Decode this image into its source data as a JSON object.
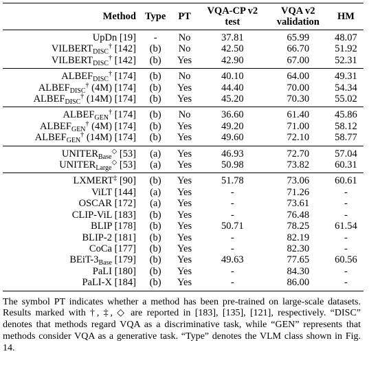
{
  "table": {
    "header": [
      [
        "Method"
      ],
      [
        "Type"
      ],
      [
        "PT"
      ],
      [
        "VQA-CP v2",
        "test"
      ],
      [
        "VQA v2",
        "validation"
      ],
      [
        "HM"
      ]
    ],
    "groups": [
      {
        "rows": [
          {
            "method": {
              "name": "UpDn",
              "ref": "[19]"
            },
            "cells": [
              "-",
              "No",
              "37.81",
              "65.99",
              "48.07"
            ]
          },
          {
            "method": {
              "name": "VILBERT",
              "sub": "DISC",
              "sup": "†",
              "ref": "[142]"
            },
            "cells": [
              "(b)",
              "No",
              "42.50",
              "66.70",
              "51.92"
            ]
          },
          {
            "method": {
              "name": "VILBERT",
              "sub": "DISC",
              "sup": "†",
              "ref": "[142]"
            },
            "cells": [
              "(b)",
              "Yes",
              "42.90",
              "67.00",
              "52.31"
            ]
          }
        ]
      },
      {
        "rows": [
          {
            "method": {
              "name": "ALBEF",
              "sub": "DISC",
              "sup": "†",
              "ref": "[174]"
            },
            "cells": [
              "(b)",
              "No",
              "40.10",
              "64.00",
              "49.31"
            ]
          },
          {
            "method": {
              "name": "ALBEF",
              "sub": "DISC",
              "sup": "†",
              "ref": "(4M) [174]"
            },
            "cells": [
              "(b)",
              "Yes",
              "44.40",
              "70.00",
              "54.34"
            ]
          },
          {
            "method": {
              "name": "ALBEF",
              "sub": "DISC",
              "sup": "†",
              "ref": "(14M) [174]"
            },
            "cells": [
              "(b)",
              "Yes",
              "45.20",
              "70.30",
              "55.02"
            ]
          }
        ]
      },
      {
        "rows": [
          {
            "method": {
              "name": "ALBEF",
              "sub": "GEN",
              "sup": "†",
              "ref": "[174]"
            },
            "cells": [
              "(b)",
              "No",
              "36.60",
              "61.40",
              "45.86"
            ]
          },
          {
            "method": {
              "name": "ALBEF",
              "sub": "GEN",
              "sup": "†",
              "ref": "(4M) [174]"
            },
            "cells": [
              "(b)",
              "Yes",
              "49.20",
              "71.00",
              "58.12"
            ]
          },
          {
            "method": {
              "name": "ALBEF",
              "sub": "GEN",
              "sup": "†",
              "ref": "(14M) [174]"
            },
            "cells": [
              "(b)",
              "Yes",
              "49.60",
              "72.10",
              "58.77"
            ]
          }
        ]
      },
      {
        "rows": [
          {
            "method": {
              "name": "UNITER",
              "sub": "Base",
              "sup": "◇",
              "ref": "[53]"
            },
            "cells": [
              "(a)",
              "Yes",
              "46.93",
              "72.70",
              "57.04"
            ]
          },
          {
            "method": {
              "name": "UNITER",
              "sub": "Large",
              "sup": "◇",
              "ref": "[53]"
            },
            "cells": [
              "(a)",
              "Yes",
              "50.98",
              "73.82",
              "60.31"
            ]
          }
        ]
      },
      {
        "rows": [
          {
            "method": {
              "name": "LXMERT",
              "sup": "‡",
              "ref": "[90]"
            },
            "cells": [
              "(b)",
              "Yes",
              "51.78",
              "73.06",
              "60.61"
            ]
          },
          {
            "method": {
              "name": "ViLT",
              "ref": "[144]"
            },
            "cells": [
              "(a)",
              "Yes",
              "-",
              "71.26",
              "-"
            ]
          },
          {
            "method": {
              "name": "OSCAR",
              "ref": "[172]"
            },
            "cells": [
              "(a)",
              "Yes",
              "-",
              "73.61",
              "-"
            ]
          },
          {
            "method": {
              "name": "CLIP-ViL",
              "ref": "[183]"
            },
            "cells": [
              "(b)",
              "Yes",
              "-",
              "76.48",
              "-"
            ]
          },
          {
            "method": {
              "name": "BLIP",
              "ref": "[178]"
            },
            "cells": [
              "(b)",
              "Yes",
              "50.71",
              "78.25",
              "61.54"
            ]
          },
          {
            "method": {
              "name": "BLIP-2",
              "ref": "[181]"
            },
            "cells": [
              "(b)",
              "Yes",
              "-",
              "82.19",
              "-"
            ]
          },
          {
            "method": {
              "name": "CoCa",
              "ref": "[177]"
            },
            "cells": [
              "(b)",
              "Yes",
              "-",
              "82.30",
              "-"
            ]
          },
          {
            "method": {
              "name": "BEiT-3",
              "sub": "Base",
              "ref": "[179]"
            },
            "cells": [
              "(b)",
              "Yes",
              "49.63",
              "77.65",
              "60.56"
            ]
          },
          {
            "method": {
              "name": "PaLI",
              "ref": "[180]"
            },
            "cells": [
              "(b)",
              "Yes",
              "-",
              "84.30",
              "-"
            ]
          },
          {
            "method": {
              "name": "PaLI-X",
              "ref": "[184]"
            },
            "cells": [
              "(b)",
              "Yes",
              "-",
              "86.00",
              "-"
            ]
          }
        ]
      }
    ]
  },
  "caption": "The symbol PT indicates whether a method has been pre-trained on large-scale datasets. Results marked with †, ‡, ◇ are reported in [183], [135], [121], respectively. “DISC” denotes that methods regard VQA as a discriminative task, while “GEN” represents that methods consider VQA as a generative task. “Type” denotes the VLM class shown in Fig. 14."
}
